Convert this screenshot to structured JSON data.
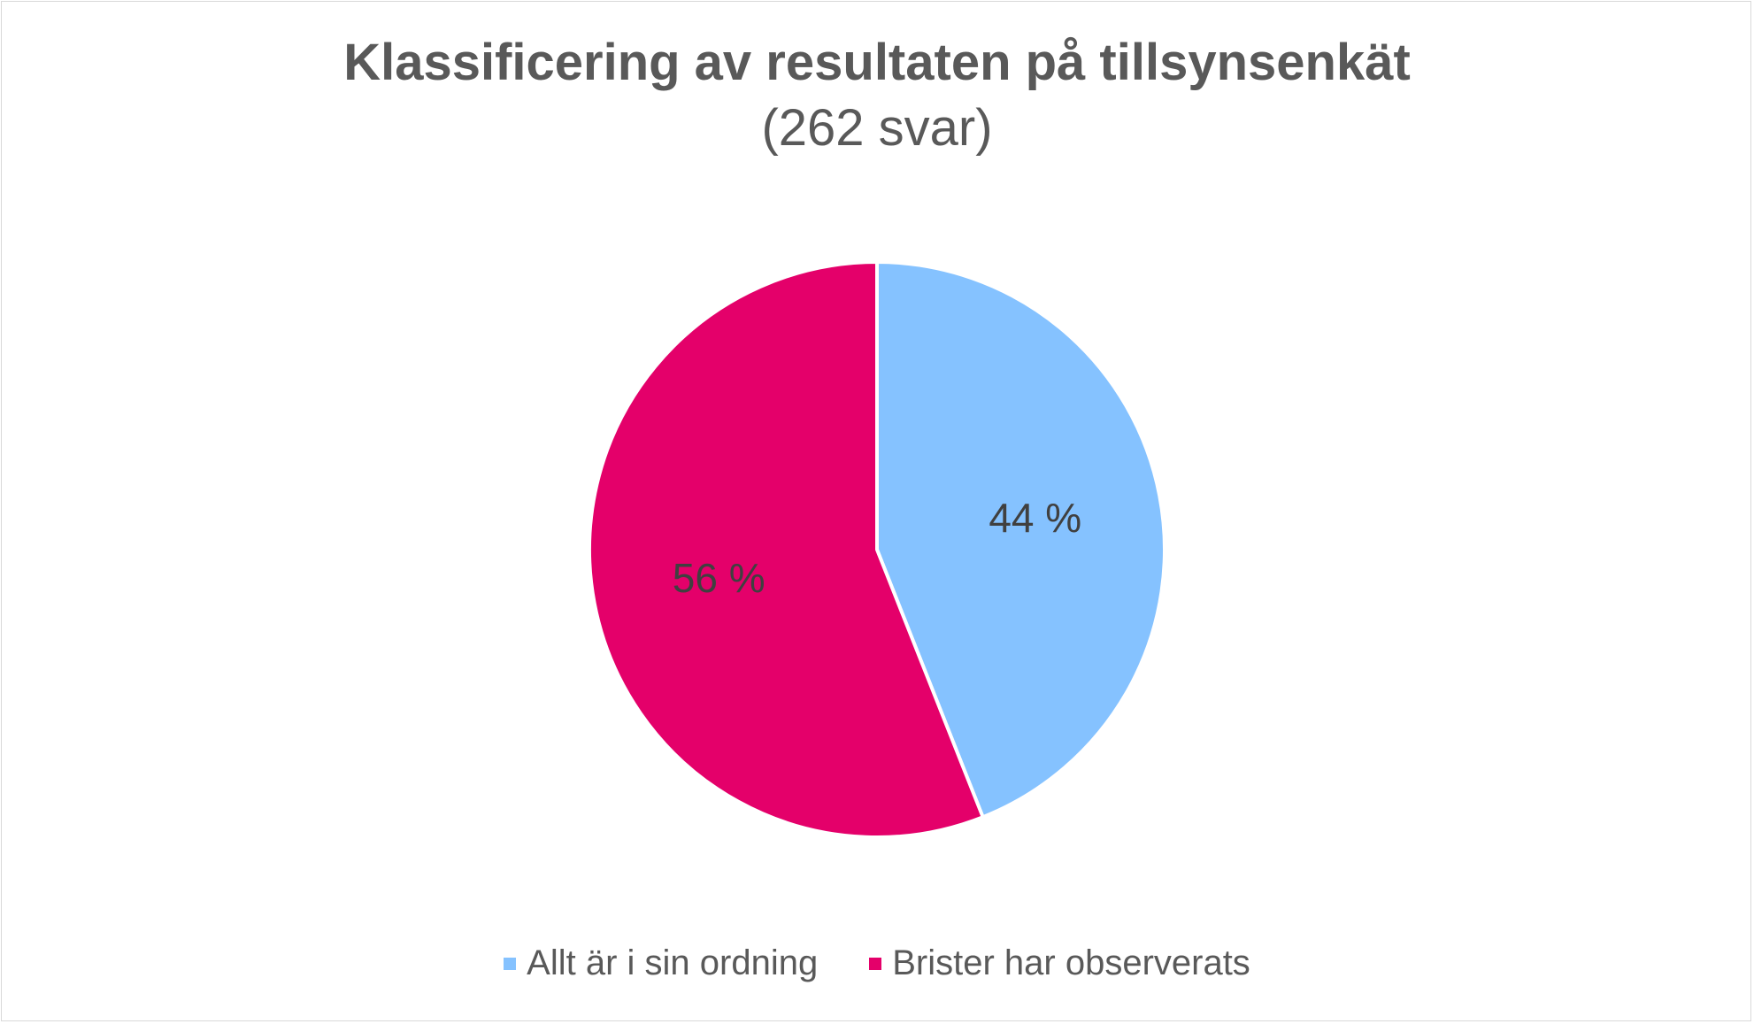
{
  "chart_data": {
    "type": "pie",
    "title": "Klassificering av resultaten på tillsynsenkät",
    "subtitle": "(262 svar)",
    "slices": [
      {
        "label": "Allt är i sin ordning",
        "value": 44,
        "display": "44 %",
        "color": "#85c2ff"
      },
      {
        "label": "Brister har observerats",
        "value": 56,
        "display": "56 %",
        "color": "#e4006a"
      }
    ],
    "legend_position": "bottom",
    "start_angle": "12 o'clock",
    "direction": "clockwise"
  }
}
